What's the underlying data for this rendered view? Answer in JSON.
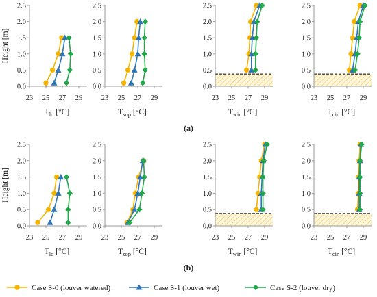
{
  "chart_data": {
    "type": "line",
    "orientation": "profile (temperature on x-axis, height on y-axis)",
    "y_axis": {
      "label": "Height [m]",
      "range": [
        0,
        2.5
      ],
      "ticks": [
        "0.0",
        "0.5",
        "1.0",
        "1.5",
        "2.0",
        "2.5"
      ]
    },
    "x_axis": {
      "range": [
        23,
        30
      ],
      "ticks": [
        "23",
        "25",
        "27",
        "29"
      ]
    },
    "series_legend": [
      {
        "name": "Case S-0 (louver watered)",
        "color": "#f5b400",
        "marker": "circle"
      },
      {
        "name": "Case S-1 (louver wet)",
        "color": "#2e75b6",
        "marker": "triangle"
      },
      {
        "name": "Case S-2 (louver dry)",
        "color": "#22a84a",
        "marker": "diamond"
      }
    ],
    "groups": [
      {
        "label": "(a)",
        "panels": [
          {
            "xlabel": {
              "main": "T",
              "sub": "lo",
              "unit": " [°C]"
            },
            "shaded_region": false,
            "series": [
              {
                "name": "Case S-0 (louver watered)",
                "points": [
                  {
                    "x": 25.0,
                    "y": 0.1
                  },
                  {
                    "x": 25.8,
                    "y": 0.5
                  },
                  {
                    "x": 26.5,
                    "y": 1.0
                  },
                  {
                    "x": 26.9,
                    "y": 1.5
                  }
                ]
              },
              {
                "name": "Case S-1 (louver wet)",
                "points": [
                  {
                    "x": 26.0,
                    "y": 0.1
                  },
                  {
                    "x": 26.5,
                    "y": 0.5
                  },
                  {
                    "x": 27.0,
                    "y": 1.0
                  },
                  {
                    "x": 27.3,
                    "y": 1.5
                  }
                ]
              },
              {
                "name": "Case S-2 (louver dry)",
                "points": [
                  {
                    "x": 27.5,
                    "y": 0.1
                  },
                  {
                    "x": 27.9,
                    "y": 0.5
                  },
                  {
                    "x": 28.0,
                    "y": 1.0
                  },
                  {
                    "x": 27.8,
                    "y": 1.5
                  }
                ]
              }
            ]
          },
          {
            "xlabel": {
              "main": "T",
              "sub": "sop",
              "unit": " [°C]"
            },
            "shaded_region": false,
            "series": [
              {
                "name": "Case S-0 (louver watered)",
                "points": [
                  {
                    "x": 25.3,
                    "y": 0.1
                  },
                  {
                    "x": 25.8,
                    "y": 0.5
                  },
                  {
                    "x": 26.3,
                    "y": 1.0
                  },
                  {
                    "x": 26.6,
                    "y": 1.5
                  },
                  {
                    "x": 26.9,
                    "y": 2.0
                  }
                ]
              },
              {
                "name": "Case S-1 (louver wet)",
                "points": [
                  {
                    "x": 26.2,
                    "y": 0.1
                  },
                  {
                    "x": 26.6,
                    "y": 0.5
                  },
                  {
                    "x": 27.0,
                    "y": 1.0
                  },
                  {
                    "x": 27.1,
                    "y": 1.5
                  },
                  {
                    "x": 27.3,
                    "y": 2.0
                  }
                ]
              },
              {
                "name": "Case S-2 (louver dry)",
                "points": [
                  {
                    "x": 27.6,
                    "y": 0.1
                  },
                  {
                    "x": 27.9,
                    "y": 0.5
                  },
                  {
                    "x": 27.8,
                    "y": 1.0
                  },
                  {
                    "x": 27.8,
                    "y": 1.5
                  },
                  {
                    "x": 27.9,
                    "y": 2.0
                  }
                ]
              }
            ]
          },
          {
            "xlabel": {
              "main": "T",
              "sub": "win",
              "unit": " [°C]"
            },
            "shaded_region": true,
            "series": [
              {
                "name": "Case S-0 (louver watered)",
                "points": [
                  {
                    "x": 26.8,
                    "y": 0.5
                  },
                  {
                    "x": 27.1,
                    "y": 1.0
                  },
                  {
                    "x": 27.2,
                    "y": 1.5
                  },
                  {
                    "x": 27.3,
                    "y": 2.0
                  },
                  {
                    "x": 28.0,
                    "y": 2.5
                  }
                ]
              },
              {
                "name": "Case S-1 (louver wet)",
                "points": [
                  {
                    "x": 27.4,
                    "y": 0.5
                  },
                  {
                    "x": 27.4,
                    "y": 1.0
                  },
                  {
                    "x": 27.5,
                    "y": 1.5
                  },
                  {
                    "x": 27.7,
                    "y": 2.0
                  },
                  {
                    "x": 28.4,
                    "y": 2.5
                  }
                ]
              },
              {
                "name": "Case S-2 (louver dry)",
                "points": [
                  {
                    "x": 27.9,
                    "y": 0.5
                  },
                  {
                    "x": 27.9,
                    "y": 1.0
                  },
                  {
                    "x": 28.0,
                    "y": 1.5
                  },
                  {
                    "x": 28.1,
                    "y": 2.0
                  },
                  {
                    "x": 28.7,
                    "y": 2.5
                  }
                ]
              }
            ]
          },
          {
            "xlabel": {
              "main": "T",
              "sub": "cin",
              "unit": " [°C]"
            },
            "shaded_region": true,
            "series": [
              {
                "name": "Case S-0 (louver watered)",
                "points": [
                  {
                    "x": 27.3,
                    "y": 0.5
                  },
                  {
                    "x": 27.5,
                    "y": 1.0
                  },
                  {
                    "x": 27.7,
                    "y": 1.5
                  },
                  {
                    "x": 27.9,
                    "y": 2.0
                  },
                  {
                    "x": 28.6,
                    "y": 2.5
                  }
                ]
              },
              {
                "name": "Case S-1 (louver wet)",
                "points": [
                  {
                    "x": 27.7,
                    "y": 0.5
                  },
                  {
                    "x": 28.0,
                    "y": 1.0
                  },
                  {
                    "x": 28.2,
                    "y": 1.5
                  },
                  {
                    "x": 28.4,
                    "y": 2.0
                  },
                  {
                    "x": 29.0,
                    "y": 2.5
                  }
                ]
              },
              {
                "name": "Case S-2 (louver dry)",
                "points": [
                  {
                    "x": 28.0,
                    "y": 0.5
                  },
                  {
                    "x": 28.3,
                    "y": 1.0
                  },
                  {
                    "x": 28.5,
                    "y": 1.5
                  },
                  {
                    "x": 28.6,
                    "y": 2.0
                  },
                  {
                    "x": 29.2,
                    "y": 2.5
                  }
                ]
              }
            ]
          }
        ]
      },
      {
        "label": "(b)",
        "panels": [
          {
            "xlabel": {
              "main": "T",
              "sub": "lo",
              "unit": " [°C]"
            },
            "shaded_region": false,
            "series": [
              {
                "name": "Case S-0 (louver watered)",
                "points": [
                  {
                    "x": 24.0,
                    "y": 0.1
                  },
                  {
                    "x": 25.3,
                    "y": 0.5
                  },
                  {
                    "x": 26.0,
                    "y": 1.0
                  },
                  {
                    "x": 26.3,
                    "y": 1.5
                  }
                ]
              },
              {
                "name": "Case S-1 (louver wet)",
                "points": [
                  {
                    "x": 25.5,
                    "y": 0.1
                  },
                  {
                    "x": 26.0,
                    "y": 0.5
                  },
                  {
                    "x": 26.5,
                    "y": 1.0
                  },
                  {
                    "x": 26.8,
                    "y": 1.5
                  }
                ]
              },
              {
                "name": "Case S-2 (louver dry)",
                "points": [
                  {
                    "x": 27.7,
                    "y": 0.1
                  },
                  {
                    "x": 27.7,
                    "y": 0.5
                  },
                  {
                    "x": 27.9,
                    "y": 1.0
                  },
                  {
                    "x": 27.5,
                    "y": 1.5
                  }
                ]
              }
            ]
          },
          {
            "xlabel": {
              "main": "T",
              "sub": "sop",
              "unit": " [°C]"
            },
            "shaded_region": false,
            "series": [
              {
                "name": "Case S-0 (louver watered)",
                "points": [
                  {
                    "x": 25.7,
                    "y": 0.1
                  },
                  {
                    "x": 26.4,
                    "y": 0.5
                  },
                  {
                    "x": 26.7,
                    "y": 1.0
                  },
                  {
                    "x": 27.1,
                    "y": 1.5
                  },
                  {
                    "x": 27.7,
                    "y": 2.0
                  }
                ]
              },
              {
                "name": "Case S-1 (louver wet)",
                "points": [
                  {
                    "x": 25.8,
                    "y": 0.1
                  },
                  {
                    "x": 26.6,
                    "y": 0.5
                  },
                  {
                    "x": 27.0,
                    "y": 1.0
                  },
                  {
                    "x": 27.3,
                    "y": 1.5
                  },
                  {
                    "x": 27.6,
                    "y": 2.0
                  }
                ]
              },
              {
                "name": "Case S-2 (louver dry)",
                "points": [
                  {
                    "x": 26.0,
                    "y": 0.1
                  },
                  {
                    "x": 27.2,
                    "y": 0.5
                  },
                  {
                    "x": 27.5,
                    "y": 1.0
                  },
                  {
                    "x": 27.8,
                    "y": 1.5
                  },
                  {
                    "x": 27.7,
                    "y": 2.0
                  }
                ]
              }
            ]
          },
          {
            "xlabel": {
              "main": "T",
              "sub": "win",
              "unit": " [°C]"
            },
            "shaded_region": true,
            "series": [
              {
                "name": "Case S-0 (louver watered)",
                "points": [
                  {
                    "x": 28.0,
                    "y": 0.5
                  },
                  {
                    "x": 28.2,
                    "y": 1.0
                  },
                  {
                    "x": 28.4,
                    "y": 1.5
                  },
                  {
                    "x": 28.6,
                    "y": 2.0
                  },
                  {
                    "x": 29.0,
                    "y": 2.5
                  }
                ]
              },
              {
                "name": "Case S-1 (louver wet)",
                "points": [
                  {
                    "x": 28.6,
                    "y": 0.5
                  },
                  {
                    "x": 28.6,
                    "y": 1.0
                  },
                  {
                    "x": 28.7,
                    "y": 1.5
                  },
                  {
                    "x": 28.8,
                    "y": 2.0
                  },
                  {
                    "x": 29.1,
                    "y": 2.5
                  }
                ]
              },
              {
                "name": "Case S-2 (louver dry)",
                "points": [
                  {
                    "x": 28.8,
                    "y": 0.5
                  },
                  {
                    "x": 28.8,
                    "y": 1.0
                  },
                  {
                    "x": 28.8,
                    "y": 1.5
                  },
                  {
                    "x": 28.9,
                    "y": 2.0
                  },
                  {
                    "x": 29.3,
                    "y": 2.5
                  }
                ]
              }
            ]
          },
          {
            "xlabel": {
              "main": "T",
              "sub": "cin",
              "unit": " [°C]"
            },
            "shaded_region": true,
            "series": [
              {
                "name": "Case S-0 (louver watered)",
                "points": [
                  {
                    "x": 28.3,
                    "y": 0.5
                  },
                  {
                    "x": 28.4,
                    "y": 1.0
                  },
                  {
                    "x": 28.4,
                    "y": 1.5
                  },
                  {
                    "x": 28.5,
                    "y": 2.0
                  },
                  {
                    "x": 28.6,
                    "y": 2.5
                  }
                ]
              },
              {
                "name": "Case S-1 (louver wet)",
                "points": [
                  {
                    "x": 28.5,
                    "y": 0.5
                  },
                  {
                    "x": 28.5,
                    "y": 1.0
                  },
                  {
                    "x": 28.5,
                    "y": 1.5
                  },
                  {
                    "x": 28.6,
                    "y": 2.0
                  },
                  {
                    "x": 28.7,
                    "y": 2.5
                  }
                ]
              },
              {
                "name": "Case S-2 (louver dry)",
                "points": [
                  {
                    "x": 28.6,
                    "y": 0.5
                  },
                  {
                    "x": 28.6,
                    "y": 1.0
                  },
                  {
                    "x": 28.6,
                    "y": 1.5
                  },
                  {
                    "x": 28.6,
                    "y": 2.0
                  },
                  {
                    "x": 28.8,
                    "y": 2.5
                  }
                ]
              }
            ]
          }
        ]
      }
    ]
  }
}
